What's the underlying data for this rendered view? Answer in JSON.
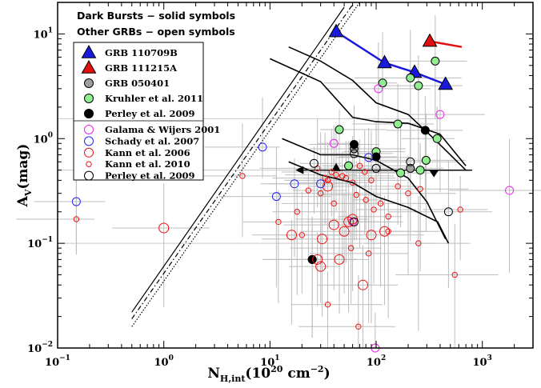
{
  "chart_data": {
    "type": "scatter",
    "x_label_parts": {
      "main": "N",
      "sub": "H,int",
      "unit": "(10",
      "unit_sup": "20",
      "unit_tail": " cm",
      "unit_sup2": "−2",
      "close": ")"
    },
    "y_label_parts": {
      "main": "A",
      "sub": "V",
      "unit": "(mag)"
    },
    "xlim": [
      0.1,
      3000
    ],
    "ylim": [
      0.01,
      20
    ],
    "x_scale": "log",
    "y_scale": "log",
    "x_ticks": [
      {
        "value": 0.1,
        "base": "10",
        "exp": "−1"
      },
      {
        "value": 1,
        "base": "10",
        "exp": "0"
      },
      {
        "value": 10,
        "base": "10",
        "exp": "1"
      },
      {
        "value": 100,
        "base": "10",
        "exp": "2"
      },
      {
        "value": 1000,
        "base": "10",
        "exp": "3"
      }
    ],
    "y_ticks": [
      {
        "value": 0.01,
        "base": "10",
        "exp": "−2"
      },
      {
        "value": 0.1,
        "base": "10",
        "exp": "−1"
      },
      {
        "value": 1,
        "base": "10",
        "exp": "0"
      },
      {
        "value": 10,
        "base": "10",
        "exp": "1"
      }
    ],
    "notes": [
      "Dark Bursts − solid symbols",
      "Other GRBs − open symbols"
    ],
    "legend_position": "upper-left",
    "legend": [
      {
        "label": "GRB 110709B",
        "marker": "triangle",
        "fill": "#1a1adc",
        "stroke": "#000000"
      },
      {
        "label": "GRB 111215A",
        "marker": "triangle",
        "fill": "#e01010",
        "stroke": "#000000"
      },
      {
        "label": "GRB 050401",
        "marker": "circle",
        "fill": "#a0a0a0",
        "stroke": "#000000"
      },
      {
        "label": "Kruhler et al. 2011",
        "marker": "circle",
        "fill": "#90ee90",
        "stroke": "#000000"
      },
      {
        "label": "Perley et al. 2009",
        "marker": "circle",
        "fill": "#000000",
        "stroke": "#000000"
      },
      {
        "label": "Galama & Wijers 2001",
        "marker": "circle",
        "fill": "none",
        "stroke": "#ee22ee"
      },
      {
        "label": "Schady et al. 2007",
        "marker": "circle",
        "fill": "none",
        "stroke": "#2222ee"
      },
      {
        "label": "Kann et al. 2006",
        "marker": "circle",
        "fill": "none",
        "stroke": "#ee1111"
      },
      {
        "label": "Kann et al. 2010",
        "marker": "circle-small",
        "fill": "none",
        "stroke": "#ee1111"
      },
      {
        "label": "Perley et al. 2009",
        "marker": "circle",
        "fill": "none",
        "stroke": "#000000"
      }
    ],
    "series": [
      {
        "name": "GRB 110709B",
        "color": "#1a1adc",
        "marker": "triangle",
        "filled": true,
        "connected": true,
        "points": [
          [
            42,
            10.5
          ],
          [
            120,
            5.3
          ],
          [
            230,
            4.3
          ],
          [
            450,
            3.3
          ]
        ]
      },
      {
        "name": "GRB 111215A",
        "color": "#e01010",
        "marker": "triangle",
        "filled": true,
        "connected": true,
        "points": [
          [
            320,
            8.5
          ],
          [
            640,
            7.5
          ]
        ]
      },
      {
        "name": "GRB 050401",
        "color": "#a0a0a0",
        "marker": "circle",
        "filled": true,
        "points": [
          [
            25,
            0.07
          ],
          [
            62,
            0.8
          ],
          [
            210,
            0.52
          ]
        ]
      },
      {
        "name": "Kruhler et al. 2011",
        "color": "#90ee90",
        "marker": "circle",
        "filled": true,
        "points": [
          [
            115,
            3.4
          ],
          [
            210,
            3.8
          ],
          [
            250,
            3.2
          ],
          [
            360,
            5.5
          ],
          [
            45,
            1.22
          ],
          [
            160,
            1.38
          ],
          [
            375,
            1.0
          ],
          [
            100,
            0.75
          ],
          [
            55,
            0.55
          ],
          [
            170,
            0.47
          ],
          [
            260,
            0.5
          ],
          [
            295,
            0.62
          ]
        ]
      },
      {
        "name": "Perley et al. 2009",
        "color": "#000000",
        "marker": "circle",
        "filled": true,
        "points": [
          [
            62,
            0.88
          ],
          [
            100,
            0.67
          ],
          [
            290,
            1.2
          ],
          [
            25,
            0.07
          ]
        ]
      },
      {
        "name": "Galama & Wijers 2001",
        "color": "#ee22ee",
        "marker": "circle",
        "filled": false,
        "points": [
          [
            40,
            0.9
          ],
          [
            105,
            3.0
          ],
          [
            400,
            1.7
          ],
          [
            1800,
            0.32
          ],
          [
            60,
            0.16
          ],
          [
            98,
            0.01
          ]
        ]
      },
      {
        "name": "Schady et al. 2007",
        "color": "#2222ee",
        "marker": "circle",
        "filled": false,
        "points": [
          [
            0.15,
            0.25
          ],
          [
            8.5,
            0.83
          ],
          [
            11.5,
            0.28
          ],
          [
            17,
            0.37
          ],
          [
            30,
            0.37
          ],
          [
            85,
            0.66
          ]
        ]
      },
      {
        "name": "Kann et al. 2006",
        "color": "#ee1111",
        "marker": "circle",
        "filled": false,
        "points": [
          [
            1.0,
            0.14
          ],
          [
            16,
            0.12
          ],
          [
            28,
            0.07
          ],
          [
            30,
            0.06
          ],
          [
            31,
            0.11
          ],
          [
            40,
            0.15
          ],
          [
            50,
            0.13
          ],
          [
            60,
            0.17
          ],
          [
            75,
            0.04
          ],
          [
            90,
            0.12
          ],
          [
            120,
            0.13
          ],
          [
            35,
            0.35
          ],
          [
            55,
            0.16
          ],
          [
            45,
            0.07
          ]
        ]
      },
      {
        "name": "Kann et al. 2010",
        "color": "#ee1111",
        "marker": "circle-small",
        "filled": false,
        "points": [
          [
            0.15,
            0.17
          ],
          [
            5.5,
            0.44
          ],
          [
            12,
            0.16
          ],
          [
            18,
            0.2
          ],
          [
            20,
            0.12
          ],
          [
            23,
            0.32
          ],
          [
            28,
            0.52
          ],
          [
            30,
            0.3
          ],
          [
            33,
            0.42
          ],
          [
            35,
            0.4
          ],
          [
            38,
            0.48
          ],
          [
            42,
            0.45
          ],
          [
            48,
            0.44
          ],
          [
            52,
            0.42
          ],
          [
            60,
            0.38
          ],
          [
            65,
            0.29
          ],
          [
            70,
            0.55
          ],
          [
            78,
            0.48
          ],
          [
            80,
            0.26
          ],
          [
            90,
            0.4
          ],
          [
            95,
            0.21
          ],
          [
            110,
            0.24
          ],
          [
            130,
            0.18
          ],
          [
            160,
            0.35
          ],
          [
            200,
            0.3
          ],
          [
            260,
            0.33
          ],
          [
            550,
            0.05
          ],
          [
            620,
            0.21
          ],
          [
            40,
            0.24
          ],
          [
            58,
            0.09
          ],
          [
            85,
            0.08
          ],
          [
            130,
            0.13
          ],
          [
            250,
            0.1
          ],
          [
            35,
            0.026
          ],
          [
            68,
            0.016
          ]
        ]
      },
      {
        "name": "Perley et al. 2009",
        "color": "#000000",
        "marker": "circle",
        "filled": false,
        "points": [
          [
            26,
            0.58
          ],
          [
            62,
            0.72
          ],
          [
            100,
            0.52
          ],
          [
            210,
            0.6
          ],
          [
            480,
            0.2
          ],
          [
            62,
            0.16
          ]
        ]
      }
    ],
    "curves": [
      {
        "style": "solid",
        "points": [
          [
            10,
            5.8
          ],
          [
            30,
            3.5
          ],
          [
            60,
            1.6
          ],
          [
            100,
            1.45
          ],
          [
            200,
            1.4
          ],
          [
            400,
            1.1
          ],
          [
            700,
            0.55
          ]
        ]
      },
      {
        "style": "solid",
        "points": [
          [
            15,
            7.5
          ],
          [
            30,
            5.5
          ],
          [
            60,
            3.6
          ],
          [
            100,
            2.2
          ],
          [
            200,
            1.7
          ],
          [
            350,
            1.0
          ],
          [
            700,
            0.5
          ]
        ]
      },
      {
        "style": "solid",
        "points": [
          [
            13,
            1.0
          ],
          [
            30,
            0.7
          ],
          [
            60,
            0.7
          ],
          [
            100,
            0.62
          ],
          [
            200,
            0.42
          ],
          [
            300,
            0.25
          ],
          [
            450,
            0.11
          ]
        ]
      },
      {
        "style": "solid",
        "points": [
          [
            15,
            0.6
          ],
          [
            30,
            0.45
          ],
          [
            60,
            0.38
          ],
          [
            100,
            0.28
          ],
          [
            200,
            0.22
          ],
          [
            380,
            0.16
          ],
          [
            480,
            0.1
          ]
        ]
      }
    ],
    "diagonals": [
      {
        "style": "solid",
        "from": [
          0.5,
          0.022
        ],
        "to": [
          50,
          18
        ]
      },
      {
        "style": "dashdot",
        "from": [
          0.5,
          0.019
        ],
        "to": [
          60,
          19
        ]
      },
      {
        "style": "dotted",
        "from": [
          0.5,
          0.016
        ],
        "to": [
          70,
          20
        ]
      }
    ],
    "upper_limits": [
      {
        "x": 42,
        "y": 0.5,
        "direction": "left-arrow",
        "extent_low": 20,
        "extent_high": 800
      },
      {
        "x": 350,
        "y": 0.5,
        "direction": "down-triangle",
        "extent_low": 200,
        "extent_high": 800
      }
    ],
    "background_lines": [
      {
        "y": 0.1,
        "x_low": 0.1,
        "x_high": 350
      },
      {
        "y": 1.55,
        "x_low": 0.1,
        "x_high": 400
      },
      {
        "y": 0.5,
        "x_low": 0.1,
        "x_high": 200
      }
    ]
  }
}
